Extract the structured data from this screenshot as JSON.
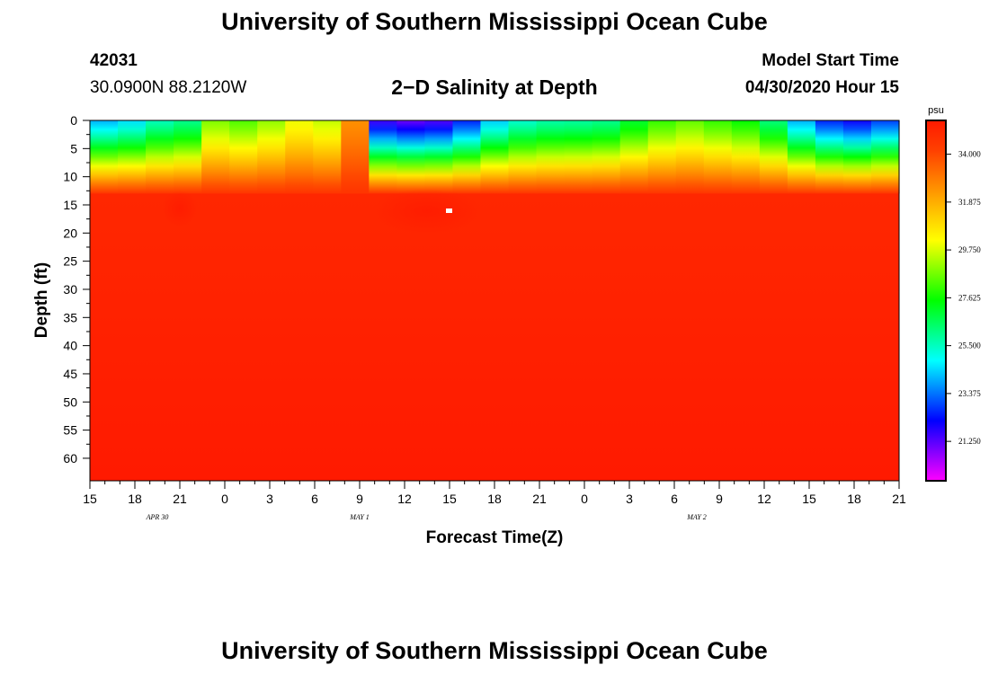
{
  "header": {
    "title": "University of Southern Mississippi Ocean Cube",
    "station_id": "42031",
    "station_coords": "30.0900N 88.2120W",
    "model_start_label": "Model Start Time",
    "model_start_value": "04/30/2020 Hour 15"
  },
  "footer": {
    "title": "University of Southern Mississippi Ocean Cube"
  },
  "chart_data": {
    "type": "heatmap",
    "title": "2−D Salinity at Depth",
    "xlabel": "Forecast Time(Z)",
    "ylabel": "Depth (ft)",
    "x_ticks": [
      "15",
      "18",
      "21",
      "0",
      "3",
      "6",
      "9",
      "12",
      "15",
      "18",
      "21",
      "0",
      "3",
      "6",
      "9",
      "12",
      "15",
      "18",
      "21"
    ],
    "x_day_labels": [
      {
        "label": "APR 30",
        "tick_index": 1.5
      },
      {
        "label": "MAY 1",
        "tick_index": 6
      },
      {
        "label": "MAY 2",
        "tick_index": 13.5
      }
    ],
    "y_ticks": [
      "0",
      "5",
      "10",
      "15",
      "20",
      "25",
      "30",
      "35",
      "40",
      "45",
      "50",
      "55",
      "60"
    ],
    "ylim": [
      0,
      64
    ],
    "y_inverted": true,
    "colorbar": {
      "unit": "psu",
      "ticks": [
        "34.000",
        "31.875",
        "29.750",
        "27.625",
        "25.500",
        "23.375",
        "21.250"
      ],
      "range": [
        19.5,
        35.5
      ],
      "colors": [
        "#ff00ff",
        "#8000ff",
        "#0000ff",
        "#0080ff",
        "#00ffff",
        "#00ff80",
        "#00ff00",
        "#80ff00",
        "#ffff00",
        "#ffc000",
        "#ff8000",
        "#ff4000",
        "#ff1a00"
      ]
    },
    "surface_salinity_psu": [
      24.0,
      24.5,
      25.5,
      26.0,
      28.8,
      28.3,
      29.0,
      30.0,
      29.5,
      32.5,
      21.5,
      21.0,
      21.3,
      22.5,
      24.3,
      25.3,
      25.7,
      25.8,
      26.0,
      27.0,
      28.0,
      28.5,
      28.0,
      27.5,
      26.2,
      24.0,
      22.5,
      22.0,
      22.8
    ],
    "deep_salinity_psu": 35.2,
    "notes_visible": "halocline near 8–12 ft"
  }
}
